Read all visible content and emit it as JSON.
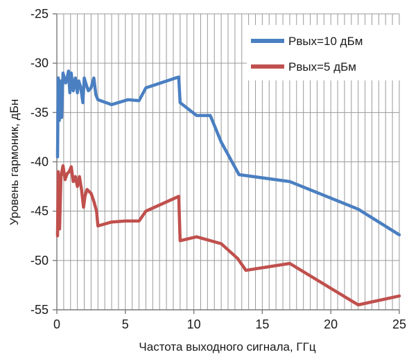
{
  "chart_data": {
    "type": "line",
    "title": "",
    "xlabel": "Частота выходного сигнала, ГГц",
    "ylabel": "Уровень гармоник, дБн",
    "xlim": [
      0,
      25
    ],
    "ylim": [
      -55,
      -25
    ],
    "x_ticks": [
      0,
      5,
      10,
      15,
      20,
      25
    ],
    "y_ticks": [
      -25,
      -30,
      -35,
      -40,
      -45,
      -50,
      -55
    ],
    "x_minor_grid_step": 0.5,
    "grid": true,
    "legend_position": "top-right",
    "series": [
      {
        "name": "Рвых=10 дБм",
        "color": "#4a7fc1",
        "x": [
          0.05,
          0.1,
          0.18,
          0.25,
          0.35,
          0.45,
          0.55,
          0.65,
          0.75,
          0.85,
          0.95,
          1.05,
          1.2,
          1.35,
          1.5,
          1.6,
          1.75,
          1.9,
          2.0,
          2.15,
          2.3,
          2.5,
          2.7,
          2.85,
          3.0,
          4.0,
          5.2,
          6.0,
          6.5,
          8.9,
          9.0,
          10.2,
          11.2,
          12.0,
          13.3,
          17.0,
          22.0,
          25.0
        ],
        "y": [
          -39.5,
          -31.5,
          -35.8,
          -31.8,
          -35.5,
          -31.0,
          -31.5,
          -32.0,
          -31.5,
          -30.8,
          -33.0,
          -31.0,
          -32.8,
          -31.5,
          -33.0,
          -31.8,
          -32.5,
          -34.0,
          -31.5,
          -32.2,
          -32.8,
          -32.5,
          -31.5,
          -33.2,
          -33.7,
          -34.2,
          -33.7,
          -33.8,
          -32.5,
          -31.4,
          -34.0,
          -35.3,
          -35.3,
          -38.0,
          -41.3,
          -42.0,
          -44.8,
          -47.4
        ]
      },
      {
        "name": "Рвых=5 дБм",
        "color": "#c0504d",
        "x": [
          0.05,
          0.1,
          0.2,
          0.3,
          0.45,
          0.6,
          0.75,
          0.9,
          1.05,
          1.2,
          1.35,
          1.5,
          1.65,
          1.8,
          1.95,
          2.05,
          2.2,
          2.5,
          2.7,
          2.9,
          3.0,
          4.0,
          5.0,
          6.0,
          6.5,
          8.9,
          9.0,
          10.2,
          12.0,
          13.2,
          13.8,
          17.0,
          22.0,
          25.0
        ],
        "y": [
          -47.5,
          -41.0,
          -46.8,
          -41.5,
          -40.4,
          -41.8,
          -41.2,
          -41.0,
          -40.5,
          -42.0,
          -41.5,
          -42.5,
          -41.5,
          -42.8,
          -44.6,
          -43.5,
          -42.8,
          -43.2,
          -44.0,
          -45.0,
          -46.5,
          -46.1,
          -46.0,
          -46.0,
          -45.0,
          -43.5,
          -48.0,
          -47.6,
          -48.3,
          -49.8,
          -51.0,
          -50.3,
          -54.5,
          -53.6
        ]
      }
    ]
  }
}
